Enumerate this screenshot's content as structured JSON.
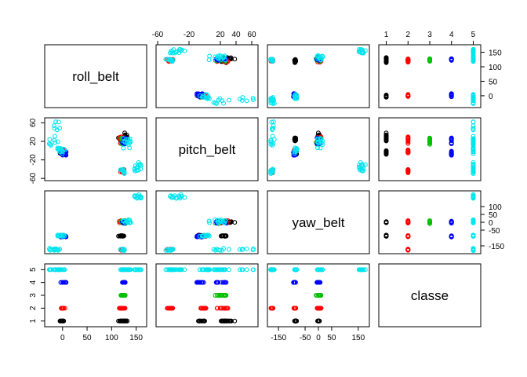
{
  "chart_data": {
    "type": "scatter-matrix",
    "variables": [
      "roll_belt",
      "pitch_belt",
      "yaw_belt",
      "classe"
    ],
    "class_levels": [
      1,
      2,
      3,
      4,
      5
    ],
    "class_colors": [
      "#000000",
      "#ff0000",
      "#00c000",
      "#0000ff",
      "#00e5ee"
    ],
    "ranges": {
      "roll_belt": [
        -30,
        165
      ],
      "pitch_belt": [
        -58,
        64
      ],
      "yaw_belt": [
        -180,
        180
      ],
      "classe": [
        0.8,
        5.2
      ]
    },
    "ticks": {
      "roll_belt": [
        0,
        50,
        100,
        150
      ],
      "pitch_belt": [
        -60,
        -20,
        20,
        60
      ],
      "pitch_belt_top": [
        -60,
        -20,
        0,
        20,
        40,
        60
      ],
      "yaw_belt": [
        -150,
        -50,
        0,
        50,
        100,
        150
      ],
      "yaw_belt_bottom": [
        -150,
        -50,
        0,
        50,
        150
      ],
      "classe": [
        1,
        2,
        3,
        4,
        5
      ]
    },
    "tick_labels": {
      "top": {
        "cols": [
          1,
          3
        ],
        "labels": [
          [
            "-60",
            "-20",
            "20",
            "40",
            "60"
          ],
          [
            "1",
            "2",
            "3",
            "4",
            "5"
          ]
        ],
        "values": [
          [
            -60,
            -20,
            20,
            40,
            60
          ],
          [
            1,
            2,
            3,
            4,
            5
          ]
        ]
      },
      "right": {
        "rows": [
          0,
          2
        ],
        "labels": [
          [
            "0",
            "50",
            "100",
            "150"
          ],
          [
            "-150",
            "-50",
            "0",
            "50",
            "100"
          ]
        ],
        "values": [
          [
            0,
            50,
            100,
            150
          ],
          [
            -150,
            -50,
            0,
            50,
            100
          ]
        ]
      },
      "left": {
        "rows": [
          1,
          3
        ],
        "labels": [
          [
            "-60",
            "-20",
            "20",
            "60"
          ],
          [
            "1",
            "2",
            "3",
            "4",
            "5"
          ]
        ],
        "values": [
          [
            -60,
            -20,
            20,
            60
          ],
          [
            1,
            2,
            3,
            4,
            5
          ]
        ]
      },
      "bottom": {
        "cols": [
          0,
          2
        ],
        "labels": [
          [
            "0",
            "50",
            "100",
            "150"
          ],
          [
            "-150",
            "-50",
            "0",
            "50",
            "150"
          ]
        ],
        "values": [
          [
            0,
            50,
            100,
            150
          ],
          [
            -150,
            -50,
            0,
            50,
            150
          ]
        ]
      }
    },
    "clusters": [
      {
        "class": 1,
        "roll": [
          114,
          126
        ],
        "pitch": [
          20,
          28
        ],
        "yaw": [
          -90,
          -85
        ]
      },
      {
        "class": 1,
        "roll": [
          125,
          132
        ],
        "pitch": [
          22,
          40
        ],
        "yaw": [
          -5,
          5
        ]
      },
      {
        "class": 1,
        "roll": [
          -5,
          3
        ],
        "pitch": [
          -8,
          0
        ],
        "yaw": [
          -88,
          -82
        ]
      },
      {
        "class": 2,
        "roll": [
          115,
          128
        ],
        "pitch": [
          12,
          30
        ],
        "yaw": [
          -5,
          10
        ]
      },
      {
        "class": 2,
        "roll": [
          118,
          126
        ],
        "pitch": [
          -48,
          -40
        ],
        "yaw": [
          -180,
          -170
        ]
      },
      {
        "class": 2,
        "roll": [
          -3,
          5
        ],
        "pitch": [
          -5,
          2
        ],
        "yaw": [
          -92,
          -85
        ]
      },
      {
        "class": 3,
        "roll": [
          118,
          128
        ],
        "pitch": [
          12,
          28
        ],
        "yaw": [
          -10,
          10
        ]
      },
      {
        "class": 4,
        "roll": [
          -5,
          8
        ],
        "pitch": [
          -10,
          0
        ],
        "yaw": [
          -94,
          -85
        ]
      },
      {
        "class": 4,
        "roll": [
          120,
          128
        ],
        "pitch": [
          14,
          28
        ],
        "yaw": [
          -6,
          8
        ]
      },
      {
        "class": 5,
        "roll": [
          -28,
          -5
        ],
        "pitch": [
          10,
          64
        ],
        "yaw": [
          -180,
          -165
        ]
      },
      {
        "class": 5,
        "roll": [
          -10,
          5
        ],
        "pitch": [
          -8,
          6
        ],
        "yaw": [
          -90,
          -80
        ]
      },
      {
        "class": 5,
        "roll": [
          120,
          140
        ],
        "pitch": [
          5,
          30
        ],
        "yaw": [
          -10,
          20
        ]
      },
      {
        "class": 5,
        "roll": [
          145,
          162
        ],
        "pitch": [
          -45,
          -25
        ],
        "yaw": [
          150,
          180
        ]
      },
      {
        "class": 5,
        "roll": [
          118,
          126
        ],
        "pitch": [
          -50,
          -40
        ],
        "yaw": [
          -180,
          -170
        ]
      }
    ]
  }
}
